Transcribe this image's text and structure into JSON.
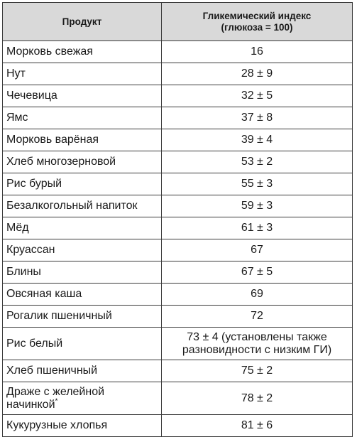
{
  "header": {
    "product": "Продукт",
    "gi_line1": "Гликемический индекс",
    "gi_line2": "(глюкоза = 100)"
  },
  "rows": [
    {
      "name": "Морковь свежая",
      "gi": "16"
    },
    {
      "name": "Нут",
      "gi": "28 ± 9"
    },
    {
      "name": "Чечевица",
      "gi": "32 ± 5"
    },
    {
      "name": "Ямс",
      "gi": "37 ± 8"
    },
    {
      "name": "Морковь варёная",
      "gi": "39 ± 4"
    },
    {
      "name": "Хлеб многозерновой",
      "gi": "53 ± 2"
    },
    {
      "name": "Рис бурый",
      "gi": "55 ± 3"
    },
    {
      "name": "Безалкогольный напиток",
      "gi": "59 ± 3"
    },
    {
      "name": "Мёд",
      "gi": "61 ± 3"
    },
    {
      "name": "Круассан",
      "gi": "67"
    },
    {
      "name": "Блины",
      "gi": "67 ± 5"
    },
    {
      "name": "Овсяная каша",
      "gi": "69"
    },
    {
      "name": "Рогалик пшеничный",
      "gi": "72"
    },
    {
      "name": "Рис белый",
      "gi": "73 ± 4 (установлены также разновидности с низким ГИ)"
    },
    {
      "name": "Хлеб пшеничный",
      "gi": "75 ± 2"
    },
    {
      "name": "Драже с желейной начинкой",
      "name_sup": "*",
      "gi": "78 ± 2"
    },
    {
      "name": "Кукурузные хлопья",
      "gi": "81 ± 6"
    }
  ]
}
